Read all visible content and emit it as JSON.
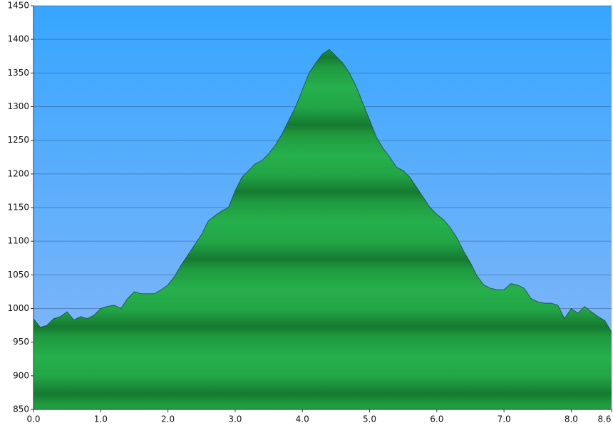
{
  "chart_data": {
    "type": "area",
    "color": "#22a845",
    "x": [
      0.0,
      0.1,
      0.2,
      0.3,
      0.4,
      0.5,
      0.6,
      0.7,
      0.8,
      0.9,
      1.0,
      1.1,
      1.2,
      1.3,
      1.4,
      1.5,
      1.6,
      1.7,
      1.8,
      1.9,
      2.0,
      2.1,
      2.2,
      2.3,
      2.4,
      2.5,
      2.6,
      2.7,
      2.8,
      2.9,
      3.0,
      3.1,
      3.2,
      3.3,
      3.4,
      3.5,
      3.6,
      3.7,
      3.8,
      3.9,
      4.0,
      4.1,
      4.2,
      4.3,
      4.4,
      4.5,
      4.6,
      4.7,
      4.8,
      4.9,
      5.0,
      5.1,
      5.2,
      5.3,
      5.4,
      5.5,
      5.6,
      5.7,
      5.8,
      5.9,
      6.0,
      6.1,
      6.2,
      6.3,
      6.4,
      6.5,
      6.6,
      6.7,
      6.8,
      6.9,
      7.0,
      7.1,
      7.2,
      7.3,
      7.4,
      7.5,
      7.6,
      7.7,
      7.8,
      7.9,
      8.0,
      8.1,
      8.2,
      8.3,
      8.4,
      8.5,
      8.6
    ],
    "values": [
      985,
      972,
      975,
      985,
      988,
      995,
      983,
      988,
      985,
      990,
      1000,
      1003,
      1005,
      1000,
      1015,
      1025,
      1022,
      1022,
      1022,
      1028,
      1035,
      1048,
      1065,
      1080,
      1095,
      1110,
      1130,
      1138,
      1145,
      1150,
      1175,
      1195,
      1205,
      1215,
      1220,
      1230,
      1243,
      1260,
      1280,
      1300,
      1325,
      1350,
      1365,
      1378,
      1385,
      1375,
      1365,
      1350,
      1330,
      1305,
      1280,
      1255,
      1238,
      1225,
      1210,
      1205,
      1195,
      1180,
      1165,
      1150,
      1140,
      1132,
      1120,
      1105,
      1085,
      1068,
      1048,
      1035,
      1030,
      1028,
      1028,
      1037,
      1035,
      1030,
      1015,
      1010,
      1008,
      1008,
      1005,
      985,
      1000,
      993,
      1003,
      995,
      988,
      982,
      965
    ],
    "xlim": [
      0,
      8.6
    ],
    "ylim": [
      850,
      1450
    ],
    "xticks": [
      {
        "value": 0,
        "label": "0.0"
      },
      {
        "value": 1,
        "label": "1.0"
      },
      {
        "value": 2,
        "label": "2.0"
      },
      {
        "value": 3,
        "label": "3.0"
      },
      {
        "value": 4,
        "label": "4.0"
      },
      {
        "value": 5,
        "label": "5.0"
      },
      {
        "value": 6,
        "label": "6.0"
      },
      {
        "value": 7,
        "label": "7.0"
      },
      {
        "value": 8,
        "label": "8.0"
      },
      8.6
    ],
    "yticks": [
      850,
      900,
      950,
      1000,
      1050,
      1100,
      1150,
      1200,
      1250,
      1300,
      1350,
      1400,
      1450
    ],
    "grid": true
  }
}
